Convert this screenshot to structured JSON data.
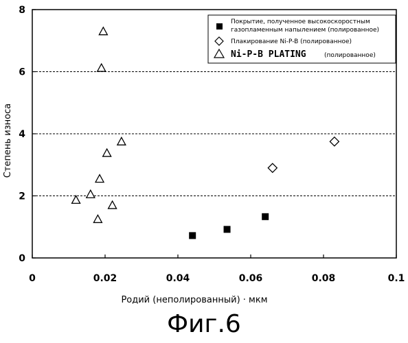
{
  "chart_data": {
    "type": "scatter",
    "title": "",
    "xlabel": "Родий (неполированный) · мкм",
    "ylabel": "Степень износа",
    "xlim": [
      0,
      0.1
    ],
    "ylim": [
      0,
      8
    ],
    "x_ticks": [
      "0",
      "0.02",
      "0.04",
      "0.06",
      "0.08",
      "0.1"
    ],
    "y_ticks": [
      "0",
      "2",
      "4",
      "6",
      "8"
    ],
    "grid": {
      "horizontal_dashed_at": [
        2,
        4,
        6
      ]
    },
    "legend_position": "top-right",
    "series": [
      {
        "name": "Покрытие, полученное высокоскоростным газопламенным напылением (полированное)",
        "name_lines": [
          "Покрытие, полученное высокоскоростным",
          "газопламенным напылением (полированное)"
        ],
        "marker": "filled-square",
        "points": [
          {
            "x": 0.044,
            "y": 0.72
          },
          {
            "x": 0.0535,
            "y": 0.92
          },
          {
            "x": 0.064,
            "y": 1.33
          }
        ]
      },
      {
        "name": "Плакирование Ni-P-B (полированное)",
        "marker": "open-diamond",
        "points": [
          {
            "x": 0.066,
            "y": 2.9
          },
          {
            "x": 0.083,
            "y": 3.75
          }
        ]
      },
      {
        "name_main": "Ni-P-B PLATING",
        "name_suffix": "(полированное)",
        "marker": "open-triangle",
        "points": [
          {
            "x": 0.012,
            "y": 1.87
          },
          {
            "x": 0.016,
            "y": 2.05
          },
          {
            "x": 0.018,
            "y": 1.25
          },
          {
            "x": 0.0185,
            "y": 2.55
          },
          {
            "x": 0.019,
            "y": 6.12
          },
          {
            "x": 0.0195,
            "y": 7.3
          },
          {
            "x": 0.0205,
            "y": 3.38
          },
          {
            "x": 0.022,
            "y": 1.7
          },
          {
            "x": 0.0245,
            "y": 3.75
          }
        ]
      }
    ]
  },
  "caption": "Фиг.6"
}
